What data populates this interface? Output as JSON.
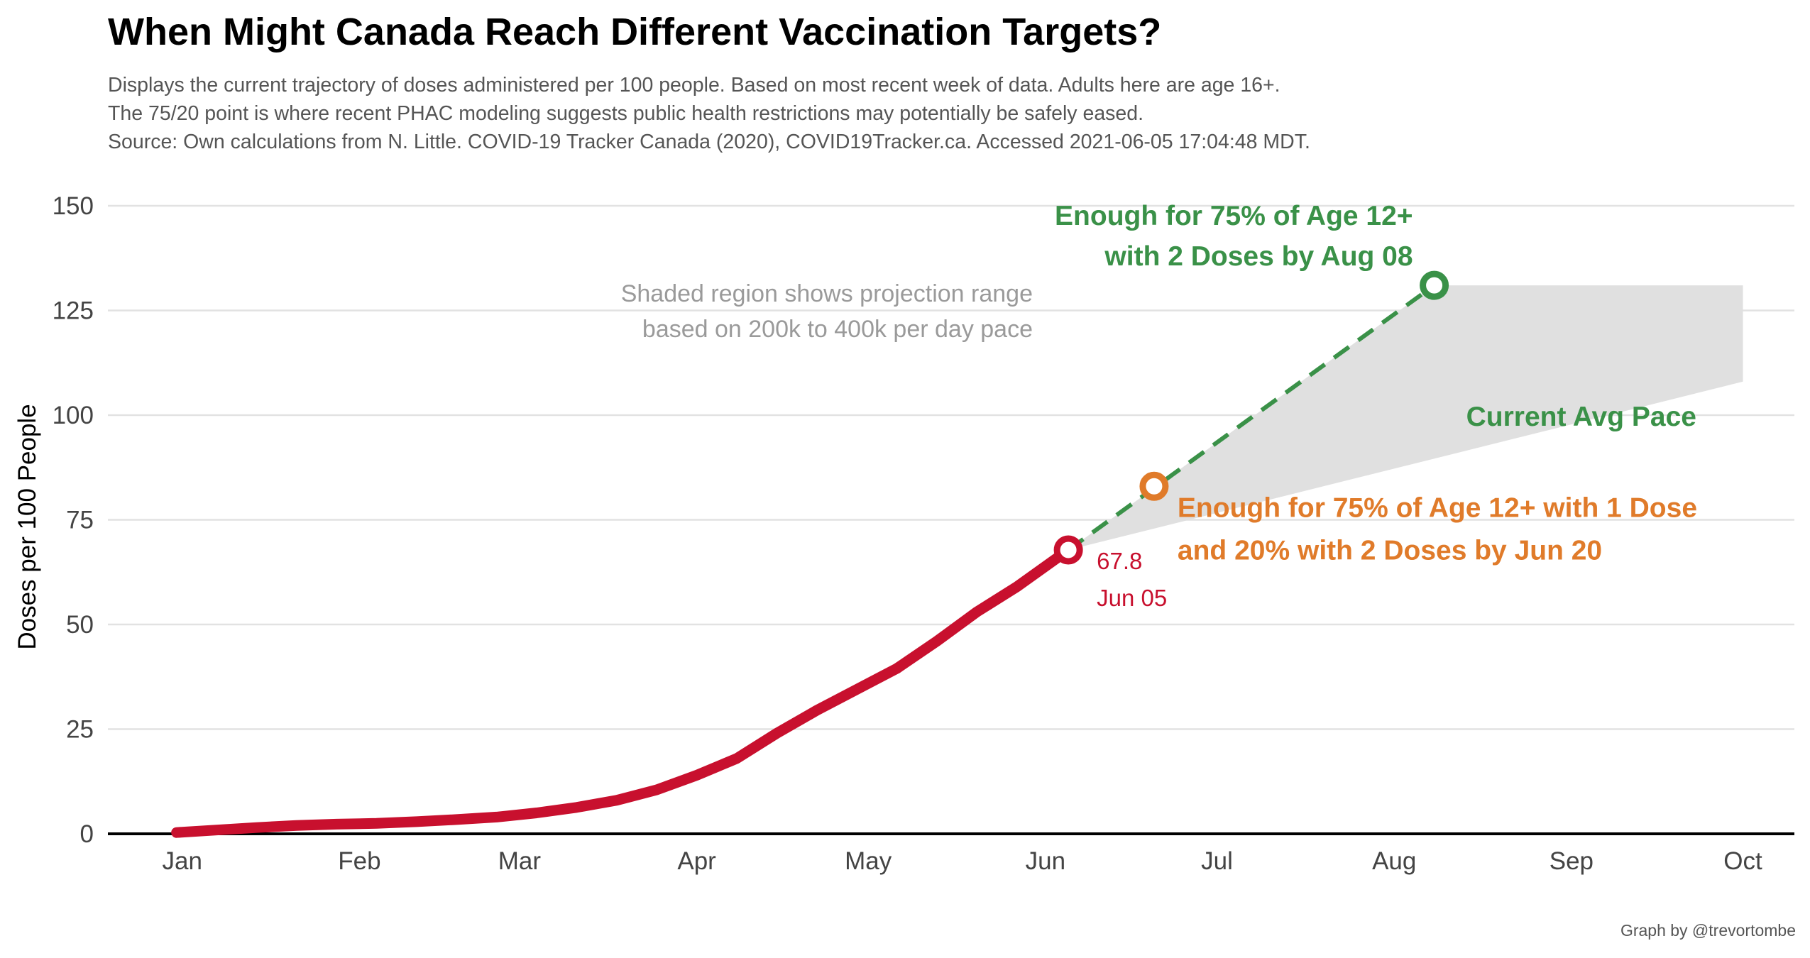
{
  "title": "When Might Canada Reach Different Vaccination Targets?",
  "subtitle_lines": [
    "Displays the current trajectory of doses administered per 100 people. Based on most recent week of data. Adults here are age 16+.",
    "The 75/20 point is where recent PHAC modeling suggests public health restrictions may potentially be safely eased.",
    "Source: Own calculations from N. Little. COVID-19 Tracker Canada (2020), COVID19Tracker.ca. Accessed 2021-06-05 17:04:48 MDT."
  ],
  "caption": "Graph by @trevortombe",
  "colors": {
    "actual": "#c8102e",
    "target_2dose": "#3a9148",
    "target_1dose": "#e07b2a",
    "shade": "#e0e0e0",
    "grid": "#e2e2e2",
    "annotation_grey": "#9a9a9a"
  },
  "chart_data": {
    "type": "line",
    "title": "When Might Canada Reach Different Vaccination Targets?",
    "xlabel": "",
    "ylabel": "Doses per 100 People",
    "ylim": [
      0,
      150
    ],
    "y_ticks": [
      0,
      25,
      50,
      75,
      100,
      125,
      150
    ],
    "x_ticks": [
      {
        "label": "Jan",
        "date": "2021-01-01"
      },
      {
        "label": "Feb",
        "date": "2021-02-01"
      },
      {
        "label": "Mar",
        "date": "2021-03-01"
      },
      {
        "label": "Apr",
        "date": "2021-04-01"
      },
      {
        "label": "May",
        "date": "2021-05-01"
      },
      {
        "label": "Jun",
        "date": "2021-06-01"
      },
      {
        "label": "Jul",
        "date": "2021-07-01"
      },
      {
        "label": "Aug",
        "date": "2021-08-01"
      },
      {
        "label": "Sep",
        "date": "2021-09-01"
      },
      {
        "label": "Oct",
        "date": "2021-10-01"
      }
    ],
    "xlim": [
      "2020-12-19",
      "2021-10-10"
    ],
    "grid": "horizontal",
    "series": [
      {
        "key": "actual",
        "style": "solid",
        "x": [
          "2020-12-31",
          "2021-01-07",
          "2021-01-14",
          "2021-01-21",
          "2021-01-28",
          "2021-02-04",
          "2021-02-11",
          "2021-02-18",
          "2021-02-25",
          "2021-03-04",
          "2021-03-11",
          "2021-03-18",
          "2021-03-25",
          "2021-04-01",
          "2021-04-08",
          "2021-04-15",
          "2021-04-22",
          "2021-04-29",
          "2021-05-06",
          "2021-05-13",
          "2021-05-20",
          "2021-05-27",
          "2021-06-05"
        ],
        "y": [
          0.3,
          0.9,
          1.5,
          2.0,
          2.3,
          2.5,
          2.9,
          3.4,
          4.0,
          5.0,
          6.3,
          8.0,
          10.5,
          14.0,
          18.0,
          24.0,
          29.5,
          34.5,
          39.5,
          46.0,
          53.0,
          59.0,
          67.8
        ]
      },
      {
        "key": "projection",
        "style": "dashed",
        "x": [
          "2021-06-05",
          "2021-08-08"
        ],
        "y": [
          67.8,
          131
        ]
      }
    ],
    "projection_range": {
      "x": [
        "2021-06-05",
        "2021-08-08",
        "2021-10-01"
      ],
      "y_upper": [
        67.8,
        131,
        131
      ],
      "y_lower": [
        67.8,
        null,
        108
      ]
    },
    "points": [
      {
        "key": "latest",
        "date": "2021-06-05",
        "y": 67.8
      },
      {
        "key": "target_1dose",
        "date": "2021-06-20",
        "y": 83
      },
      {
        "key": "target_2dose",
        "date": "2021-08-08",
        "y": 131
      }
    ],
    "annotations": {
      "latest_value": "67.8",
      "latest_date": "Jun 05",
      "shade_note": [
        "Shaded region shows projection range",
        "based on 200k to 400k per day pace"
      ],
      "target_2dose": [
        "Enough for 75% of Age 12+",
        "with 2 Doses by Aug 08"
      ],
      "target_1dose": [
        "Enough for 75% of Age 12+ with 1 Dose",
        "and 20% with 2 Doses by Jun 20"
      ],
      "pace_label": "Current Avg Pace"
    }
  }
}
